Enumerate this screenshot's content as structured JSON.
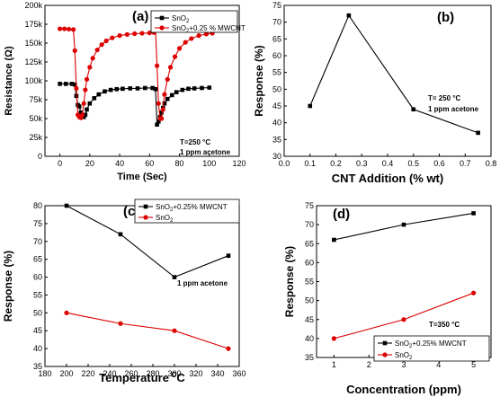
{
  "chart_data": [
    {
      "id": "a",
      "type": "line",
      "panel_label": "(a)",
      "xlabel": "Time (Sec)",
      "ylabel": "Resistance (Ω)",
      "xlim": [
        -10,
        120
      ],
      "ylim": [
        0,
        200000
      ],
      "xticks": [
        0,
        20,
        40,
        60,
        80,
        100,
        120
      ],
      "yticks": [
        0,
        25000,
        50000,
        75000,
        100000,
        125000,
        150000,
        175000,
        200000
      ],
      "ytick_labels": [
        "0",
        "25k",
        "50k",
        "75k",
        "100k",
        "125k",
        "150k",
        "175k",
        "200k"
      ],
      "legend_position": "top-right",
      "annotations": [
        "T=250 °C",
        "1 ppm acetone"
      ],
      "series": [
        {
          "name": "SnO2",
          "name_main": "SnO",
          "name_sub": "2",
          "name_tail": "",
          "color": "#000000",
          "marker": "square",
          "x": [
            0,
            4,
            8,
            10,
            11,
            12,
            13,
            14,
            15,
            16,
            17,
            18,
            20,
            23,
            26,
            30,
            34,
            38,
            42,
            47,
            52,
            57,
            62,
            64,
            65,
            66,
            67,
            68,
            69,
            70,
            72,
            75,
            78,
            82,
            86,
            90,
            95,
            100
          ],
          "y": [
            96000,
            96000,
            96000,
            95000,
            80000,
            68000,
            66000,
            58000,
            53000,
            52000,
            55000,
            62000,
            70000,
            77000,
            82000,
            86000,
            88000,
            89000,
            89500,
            90000,
            90000,
            90500,
            90500,
            89000,
            42000,
            46000,
            52000,
            58000,
            64000,
            70000,
            76000,
            81000,
            85000,
            88000,
            89500,
            90000,
            90500,
            91000
          ]
        },
        {
          "name": "SnO2+0.25 % MWCNT",
          "name_main": "SnO",
          "name_sub": "2",
          "name_tail": "+0.25 % MWCNT",
          "color": "#dd0000",
          "marker": "circle",
          "x": [
            0,
            3,
            6,
            9,
            10,
            11,
            12,
            13,
            14,
            15,
            16,
            17,
            18,
            20,
            22,
            25,
            28,
            31,
            35,
            40,
            45,
            50,
            55,
            60,
            63,
            64,
            65,
            66,
            67,
            68,
            69,
            70,
            72,
            74,
            77,
            80,
            84,
            88,
            93,
            98,
            102
          ],
          "y": [
            169000,
            169000,
            168500,
            168000,
            140000,
            90000,
            55000,
            52000,
            51000,
            55000,
            70000,
            88000,
            102000,
            118000,
            130000,
            141000,
            148000,
            153000,
            157000,
            160000,
            161500,
            162500,
            163000,
            163500,
            164000,
            168000,
            120000,
            70000,
            50000,
            50000,
            62000,
            82000,
            102000,
            118000,
            132000,
            143000,
            151000,
            156000,
            160000,
            162000,
            163000
          ]
        }
      ]
    },
    {
      "id": "b",
      "type": "line",
      "panel_label": "(b)",
      "xlabel": "CNT Addition (% wt)",
      "ylabel": "Response (%)",
      "xlim": [
        0.0,
        0.8
      ],
      "ylim": [
        30,
        75
      ],
      "xticks": [
        0.0,
        0.1,
        0.2,
        0.3,
        0.4,
        0.5,
        0.6,
        0.7,
        0.8
      ],
      "yticks": [
        30,
        35,
        40,
        45,
        50,
        55,
        60,
        65,
        70,
        75
      ],
      "annotations": [
        "T= 250 °C",
        "1 ppm acetone"
      ],
      "series": [
        {
          "color": "#000000",
          "marker": "square",
          "x": [
            0.1,
            0.25,
            0.5,
            0.75
          ],
          "y": [
            45,
            72,
            44,
            37
          ]
        }
      ]
    },
    {
      "id": "c",
      "type": "line",
      "panel_label": "(c)",
      "xlabel": "Temperature",
      "xlabel_sup": "O",
      "xlabel_tail": "C",
      "ylabel": "Response (%)",
      "xlim": [
        180,
        360
      ],
      "ylim": [
        35,
        80
      ],
      "xticks": [
        180,
        200,
        220,
        240,
        260,
        280,
        300,
        320,
        340,
        360
      ],
      "yticks": [
        35,
        40,
        45,
        50,
        55,
        60,
        65,
        70,
        75,
        80
      ],
      "legend_position": "top-right",
      "annotations": [
        "1 ppm acetone"
      ],
      "series": [
        {
          "name": "SnO2+0.25% MWCNT",
          "name_main": "SnO",
          "name_sub": "2",
          "name_tail": "+0.25% MWCNT",
          "color": "#000000",
          "marker": "square",
          "x": [
            200,
            250,
            300,
            350
          ],
          "y": [
            80,
            72,
            60,
            66
          ]
        },
        {
          "name": "SnO2",
          "name_main": "SnO",
          "name_sub": "2",
          "name_tail": "",
          "color": "#dd0000",
          "marker": "circle",
          "x": [
            200,
            250,
            300,
            350
          ],
          "y": [
            50,
            47,
            45,
            40
          ]
        }
      ]
    },
    {
      "id": "d",
      "type": "line",
      "panel_label": "(d)",
      "xlabel": "Concentration (ppm)",
      "ylabel": "Response (%)",
      "xlim": [
        0.5,
        5.5
      ],
      "ylim": [
        35,
        75
      ],
      "xticks": [
        1,
        2,
        3,
        4,
        5
      ],
      "yticks": [
        35,
        40,
        45,
        50,
        55,
        60,
        65,
        70,
        75
      ],
      "legend_position": "bottom-right",
      "annotations": [
        "T=350 °C"
      ],
      "series": [
        {
          "name": "SnO2+0.25% MWCNT",
          "name_main": "SnO",
          "name_sub": "2",
          "name_tail": "+0.25% MWCNT",
          "color": "#000000",
          "marker": "square",
          "x": [
            1,
            3,
            5
          ],
          "y": [
            66,
            70,
            73
          ]
        },
        {
          "name": "SnO2",
          "name_main": "SnO",
          "name_sub": "2",
          "name_tail": "",
          "color": "#dd0000",
          "marker": "circle",
          "x": [
            1,
            3,
            5
          ],
          "y": [
            40,
            45,
            52
          ]
        }
      ]
    }
  ]
}
